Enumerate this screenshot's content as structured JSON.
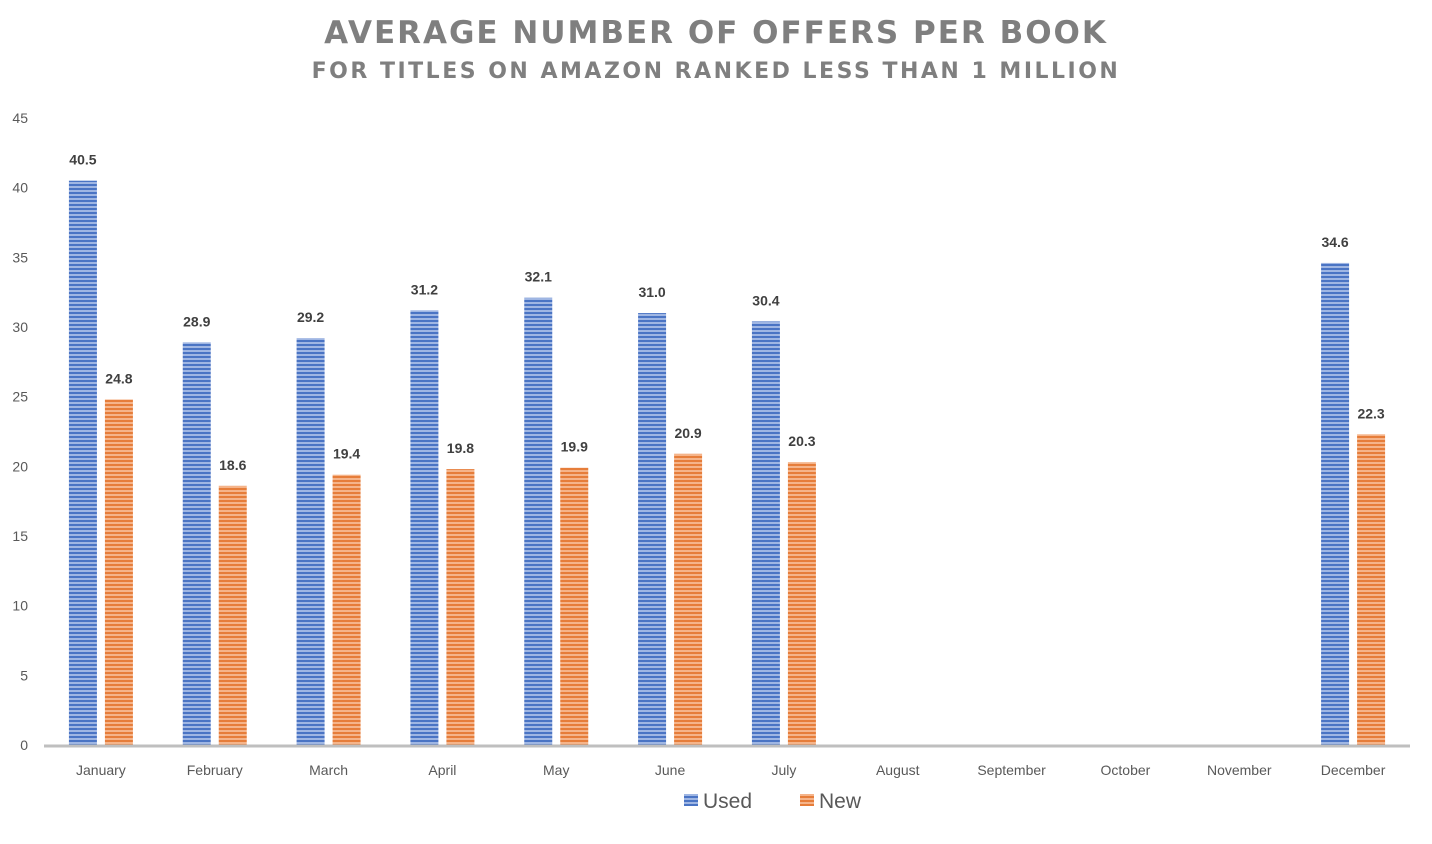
{
  "chart_data": {
    "type": "bar",
    "title": "AVERAGE NUMBER OF OFFERS PER BOOK",
    "subtitle": "FOR TITLES ON AMAZON RANKED LESS THAN 1 MILLION",
    "xlabel": "",
    "ylabel": "",
    "ylim": [
      0,
      45
    ],
    "yticks": [
      0,
      5,
      10,
      15,
      20,
      25,
      30,
      35,
      40,
      45
    ],
    "grid": false,
    "legend": "bottom",
    "categories": [
      "January",
      "February",
      "March",
      "April",
      "May",
      "June",
      "July",
      "August",
      "September",
      "October",
      "November",
      "December"
    ],
    "series": [
      {
        "name": "Used",
        "color": "#4472C4",
        "values": [
          40.5,
          28.9,
          29.2,
          31.2,
          32.1,
          31.0,
          30.4,
          null,
          null,
          null,
          null,
          34.6
        ]
      },
      {
        "name": "New",
        "color": "#ED7D31",
        "values": [
          24.8,
          18.6,
          19.4,
          19.8,
          19.9,
          20.9,
          20.3,
          null,
          null,
          null,
          null,
          22.3
        ]
      }
    ]
  }
}
